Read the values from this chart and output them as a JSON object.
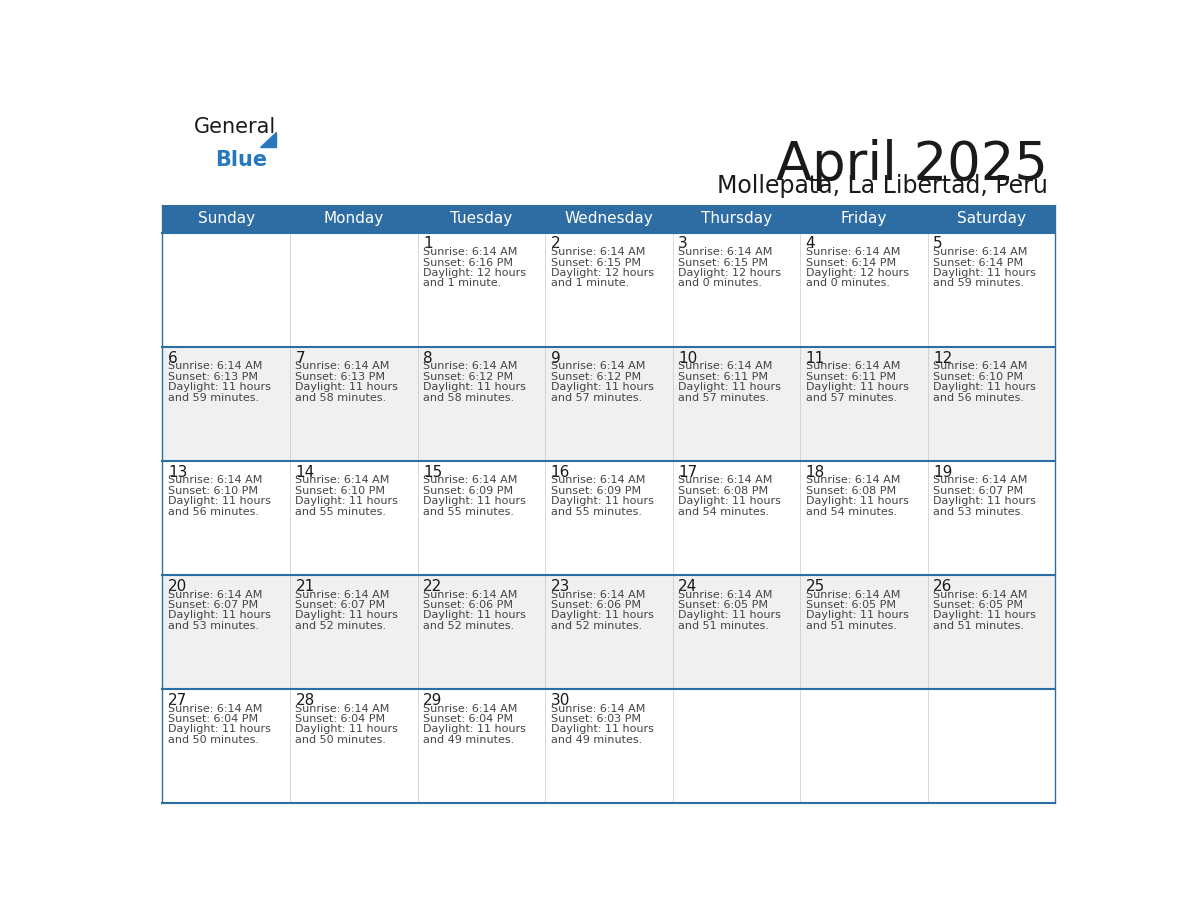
{
  "title": "April 2025",
  "subtitle": "Mollepata, La Libertad, Peru",
  "header_color": "#2E6DA4",
  "header_text_color": "#FFFFFF",
  "days_of_week": [
    "Sunday",
    "Monday",
    "Tuesday",
    "Wednesday",
    "Thursday",
    "Friday",
    "Saturday"
  ],
  "background_color": "#FFFFFF",
  "cell_bg_even": "#FFFFFF",
  "cell_bg_odd": "#F0F0F0",
  "grid_line_color": "#2E6DA4",
  "day_num_color": "#1A1A1A",
  "text_color": "#444444",
  "logo_general_color": "#1A1A1A",
  "logo_blue_color": "#2878BE",
  "calendar_data": [
    [
      null,
      null,
      {
        "day": 1,
        "sunrise": "6:14 AM",
        "sunset": "6:16 PM",
        "daylight_h": "12 hours",
        "daylight_m": "and 1 minute."
      },
      {
        "day": 2,
        "sunrise": "6:14 AM",
        "sunset": "6:15 PM",
        "daylight_h": "12 hours",
        "daylight_m": "and 1 minute."
      },
      {
        "day": 3,
        "sunrise": "6:14 AM",
        "sunset": "6:15 PM",
        "daylight_h": "12 hours",
        "daylight_m": "and 0 minutes."
      },
      {
        "day": 4,
        "sunrise": "6:14 AM",
        "sunset": "6:14 PM",
        "daylight_h": "12 hours",
        "daylight_m": "and 0 minutes."
      },
      {
        "day": 5,
        "sunrise": "6:14 AM",
        "sunset": "6:14 PM",
        "daylight_h": "11 hours",
        "daylight_m": "and 59 minutes."
      }
    ],
    [
      {
        "day": 6,
        "sunrise": "6:14 AM",
        "sunset": "6:13 PM",
        "daylight_h": "11 hours",
        "daylight_m": "and 59 minutes."
      },
      {
        "day": 7,
        "sunrise": "6:14 AM",
        "sunset": "6:13 PM",
        "daylight_h": "11 hours",
        "daylight_m": "and 58 minutes."
      },
      {
        "day": 8,
        "sunrise": "6:14 AM",
        "sunset": "6:12 PM",
        "daylight_h": "11 hours",
        "daylight_m": "and 58 minutes."
      },
      {
        "day": 9,
        "sunrise": "6:14 AM",
        "sunset": "6:12 PM",
        "daylight_h": "11 hours",
        "daylight_m": "and 57 minutes."
      },
      {
        "day": 10,
        "sunrise": "6:14 AM",
        "sunset": "6:11 PM",
        "daylight_h": "11 hours",
        "daylight_m": "and 57 minutes."
      },
      {
        "day": 11,
        "sunrise": "6:14 AM",
        "sunset": "6:11 PM",
        "daylight_h": "11 hours",
        "daylight_m": "and 57 minutes."
      },
      {
        "day": 12,
        "sunrise": "6:14 AM",
        "sunset": "6:10 PM",
        "daylight_h": "11 hours",
        "daylight_m": "and 56 minutes."
      }
    ],
    [
      {
        "day": 13,
        "sunrise": "6:14 AM",
        "sunset": "6:10 PM",
        "daylight_h": "11 hours",
        "daylight_m": "and 56 minutes."
      },
      {
        "day": 14,
        "sunrise": "6:14 AM",
        "sunset": "6:10 PM",
        "daylight_h": "11 hours",
        "daylight_m": "and 55 minutes."
      },
      {
        "day": 15,
        "sunrise": "6:14 AM",
        "sunset": "6:09 PM",
        "daylight_h": "11 hours",
        "daylight_m": "and 55 minutes."
      },
      {
        "day": 16,
        "sunrise": "6:14 AM",
        "sunset": "6:09 PM",
        "daylight_h": "11 hours",
        "daylight_m": "and 55 minutes."
      },
      {
        "day": 17,
        "sunrise": "6:14 AM",
        "sunset": "6:08 PM",
        "daylight_h": "11 hours",
        "daylight_m": "and 54 minutes."
      },
      {
        "day": 18,
        "sunrise": "6:14 AM",
        "sunset": "6:08 PM",
        "daylight_h": "11 hours",
        "daylight_m": "and 54 minutes."
      },
      {
        "day": 19,
        "sunrise": "6:14 AM",
        "sunset": "6:07 PM",
        "daylight_h": "11 hours",
        "daylight_m": "and 53 minutes."
      }
    ],
    [
      {
        "day": 20,
        "sunrise": "6:14 AM",
        "sunset": "6:07 PM",
        "daylight_h": "11 hours",
        "daylight_m": "and 53 minutes."
      },
      {
        "day": 21,
        "sunrise": "6:14 AM",
        "sunset": "6:07 PM",
        "daylight_h": "11 hours",
        "daylight_m": "and 52 minutes."
      },
      {
        "day": 22,
        "sunrise": "6:14 AM",
        "sunset": "6:06 PM",
        "daylight_h": "11 hours",
        "daylight_m": "and 52 minutes."
      },
      {
        "day": 23,
        "sunrise": "6:14 AM",
        "sunset": "6:06 PM",
        "daylight_h": "11 hours",
        "daylight_m": "and 52 minutes."
      },
      {
        "day": 24,
        "sunrise": "6:14 AM",
        "sunset": "6:05 PM",
        "daylight_h": "11 hours",
        "daylight_m": "and 51 minutes."
      },
      {
        "day": 25,
        "sunrise": "6:14 AM",
        "sunset": "6:05 PM",
        "daylight_h": "11 hours",
        "daylight_m": "and 51 minutes."
      },
      {
        "day": 26,
        "sunrise": "6:14 AM",
        "sunset": "6:05 PM",
        "daylight_h": "11 hours",
        "daylight_m": "and 51 minutes."
      }
    ],
    [
      {
        "day": 27,
        "sunrise": "6:14 AM",
        "sunset": "6:04 PM",
        "daylight_h": "11 hours",
        "daylight_m": "and 50 minutes."
      },
      {
        "day": 28,
        "sunrise": "6:14 AM",
        "sunset": "6:04 PM",
        "daylight_h": "11 hours",
        "daylight_m": "and 50 minutes."
      },
      {
        "day": 29,
        "sunrise": "6:14 AM",
        "sunset": "6:04 PM",
        "daylight_h": "11 hours",
        "daylight_m": "and 49 minutes."
      },
      {
        "day": 30,
        "sunrise": "6:14 AM",
        "sunset": "6:03 PM",
        "daylight_h": "11 hours",
        "daylight_m": "and 49 minutes."
      },
      null,
      null,
      null
    ]
  ]
}
